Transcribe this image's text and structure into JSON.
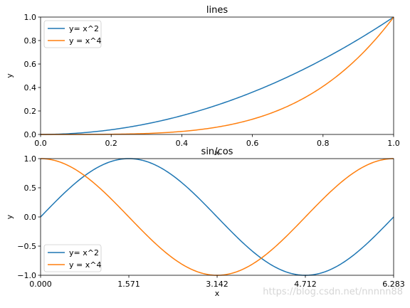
{
  "chart_data": [
    {
      "type": "line",
      "title": "lines",
      "xlabel": "x",
      "ylabel": "y",
      "xlim": [
        0,
        1
      ],
      "ylim": [
        0,
        1
      ],
      "xticks": [
        0.0,
        0.2,
        0.4,
        0.6,
        0.8,
        1.0
      ],
      "xtick_labels": [
        "0.0",
        "0.2",
        "0.4",
        "0.6",
        "0.8",
        "1.0"
      ],
      "yticks": [
        0.0,
        0.2,
        0.4,
        0.6,
        0.8,
        1.0
      ],
      "ytick_labels": [
        "0.0",
        "0.2",
        "0.4",
        "0.6",
        "0.8",
        "1.0"
      ],
      "grid": false,
      "legend_position": "top-left",
      "series": [
        {
          "name": "y= x^2",
          "color": "#1f77b4",
          "x": [
            0,
            0.1,
            0.2,
            0.3,
            0.4,
            0.5,
            0.6,
            0.7,
            0.8,
            0.9,
            1.0
          ],
          "y": [
            0,
            0.01,
            0.04,
            0.09,
            0.16,
            0.25,
            0.36,
            0.49,
            0.64,
            0.81,
            1.0
          ]
        },
        {
          "name": "y = x^4",
          "color": "#ff7f0e",
          "x": [
            0,
            0.1,
            0.2,
            0.3,
            0.4,
            0.5,
            0.6,
            0.7,
            0.8,
            0.9,
            1.0
          ],
          "y": [
            0,
            0.0001,
            0.0016,
            0.0081,
            0.0256,
            0.0625,
            0.1296,
            0.2401,
            0.4096,
            0.6561,
            1.0
          ]
        }
      ]
    },
    {
      "type": "line",
      "title": "sin/cos",
      "xlabel": "x",
      "ylabel": "y",
      "xlim": [
        0,
        6.283
      ],
      "ylim": [
        -1,
        1
      ],
      "xticks": [
        0,
        1.571,
        3.142,
        4.712,
        6.283
      ],
      "xtick_labels": [
        "0.000",
        "1.571",
        "3.142",
        "4.712",
        "6.283"
      ],
      "yticks": [
        -1.0,
        -0.5,
        0.0,
        0.5,
        1.0
      ],
      "ytick_labels": [
        "−1.0",
        "−0.5",
        "0.0",
        "0.5",
        "1.0"
      ],
      "grid": false,
      "legend_position": "bottom-left",
      "series": [
        {
          "name": "y= x^2",
          "color": "#1f77b4",
          "x": [
            0,
            0.785,
            1.571,
            2.356,
            3.142,
            3.927,
            4.712,
            5.498,
            6.283
          ],
          "y": [
            0,
            0.707,
            1.0,
            0.707,
            0,
            -0.707,
            -1.0,
            -0.707,
            0
          ]
        },
        {
          "name": "y = x^4",
          "color": "#ff7f0e",
          "x": [
            0,
            0.785,
            1.571,
            2.356,
            3.142,
            3.927,
            4.712,
            5.498,
            6.283
          ],
          "y": [
            1.0,
            0.707,
            0,
            -0.707,
            -1.0,
            -0.707,
            0,
            0.707,
            1.0
          ]
        }
      ]
    }
  ],
  "watermark": "https://blog.csdn.net/nnnnn88"
}
